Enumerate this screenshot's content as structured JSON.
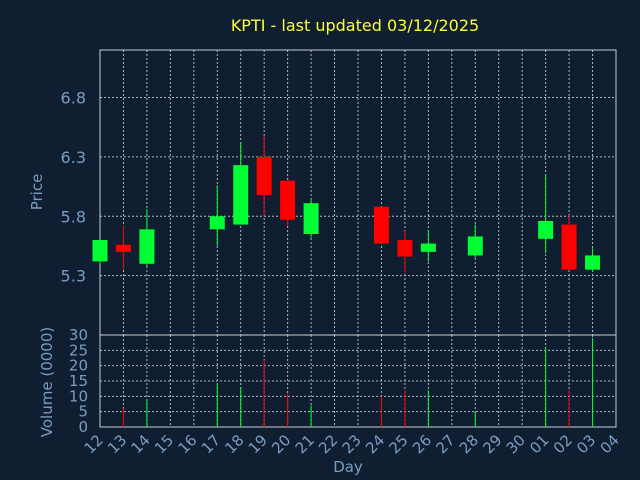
{
  "chart_data": {
    "type": "candlestick",
    "title": "KPTI - last updated 03/12/2025",
    "xlabel": "Day",
    "price_ylabel": "Price",
    "volume_ylabel": "Volume (0000)",
    "price_yticks": [
      "5.3",
      "5.8",
      "6.3",
      "6.8"
    ],
    "price_ylim": [
      4.8,
      7.2
    ],
    "volume_yticks": [
      "0",
      "5",
      "10",
      "15",
      "20",
      "25",
      "30"
    ],
    "volume_ylim": [
      0,
      30
    ],
    "x_ticks": [
      "12",
      "13",
      "14",
      "15",
      "16",
      "17",
      "18",
      "19",
      "20",
      "21",
      "22",
      "23",
      "24",
      "25",
      "26",
      "27",
      "28",
      "29",
      "30",
      "01",
      "02",
      "03",
      "04"
    ],
    "grid": true,
    "colors": {
      "up": "#00ff33",
      "down": "#ff0000",
      "background": "#0f1e30",
      "title": "#ffff33",
      "label": "#7a9dc4"
    },
    "candles": [
      {
        "day": "12",
        "open": 5.42,
        "high": 5.6,
        "low": 5.4,
        "close": 5.6,
        "volume": 0
      },
      {
        "day": "13",
        "open": 5.56,
        "high": 5.72,
        "low": 5.35,
        "close": 5.5,
        "volume": 6
      },
      {
        "day": "14",
        "open": 5.4,
        "high": 5.86,
        "low": 5.38,
        "close": 5.69,
        "volume": 9
      },
      {
        "day": "17",
        "open": 5.69,
        "high": 6.06,
        "low": 5.55,
        "close": 5.8,
        "volume": 14
      },
      {
        "day": "18",
        "open": 5.73,
        "high": 6.42,
        "low": 5.73,
        "close": 6.23,
        "volume": 13
      },
      {
        "day": "19",
        "open": 6.3,
        "high": 6.48,
        "low": 5.8,
        "close": 5.98,
        "volume": 22
      },
      {
        "day": "20",
        "open": 6.1,
        "high": 6.1,
        "low": 5.72,
        "close": 5.77,
        "volume": 11
      },
      {
        "day": "21",
        "open": 5.65,
        "high": 5.94,
        "low": 5.62,
        "close": 5.91,
        "volume": 7
      },
      {
        "day": "24",
        "open": 5.88,
        "high": 5.88,
        "low": 5.57,
        "close": 5.57,
        "volume": 10
      },
      {
        "day": "25",
        "open": 5.6,
        "high": 5.68,
        "low": 5.32,
        "close": 5.46,
        "volume": 12
      },
      {
        "day": "26",
        "open": 5.5,
        "high": 5.68,
        "low": 5.42,
        "close": 5.57,
        "volume": 12
      },
      {
        "day": "28",
        "open": 5.47,
        "high": 5.73,
        "low": 5.45,
        "close": 5.63,
        "volume": 5
      },
      {
        "day": "01",
        "open": 5.61,
        "high": 6.15,
        "low": 5.49,
        "close": 5.76,
        "volume": 26
      },
      {
        "day": "02",
        "open": 5.73,
        "high": 5.81,
        "low": 5.35,
        "close": 5.35,
        "volume": 12
      },
      {
        "day": "03",
        "open": 5.35,
        "high": 5.53,
        "low": 5.33,
        "close": 5.47,
        "volume": 29
      }
    ]
  }
}
